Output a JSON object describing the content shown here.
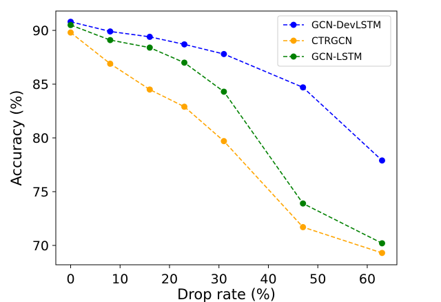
{
  "chart_data": {
    "type": "line",
    "title": "",
    "xlabel": "Drop rate (%)",
    "ylabel": "Accuracy (%)",
    "xlim": [
      -3,
      66
    ],
    "ylim": [
      68.2,
      91.8
    ],
    "xticks": [
      0,
      10,
      20,
      30,
      40,
      50,
      60
    ],
    "yticks": [
      70,
      75,
      80,
      85,
      90
    ],
    "grid": false,
    "legend_position": "top-right",
    "x": [
      0,
      8,
      16,
      23,
      31,
      47,
      63
    ],
    "series": [
      {
        "name": "GCN-DevLSTM",
        "color": "#0000ff",
        "values": [
          90.8,
          89.9,
          89.4,
          88.7,
          87.8,
          84.7,
          77.9
        ]
      },
      {
        "name": "CTRGCN",
        "color": "#ffa500",
        "values": [
          89.8,
          86.9,
          84.5,
          82.9,
          79.7,
          71.7,
          69.3
        ]
      },
      {
        "name": "GCN-LSTM",
        "color": "#008000",
        "values": [
          90.5,
          89.1,
          88.4,
          87.0,
          84.3,
          73.9,
          70.2
        ]
      }
    ]
  }
}
